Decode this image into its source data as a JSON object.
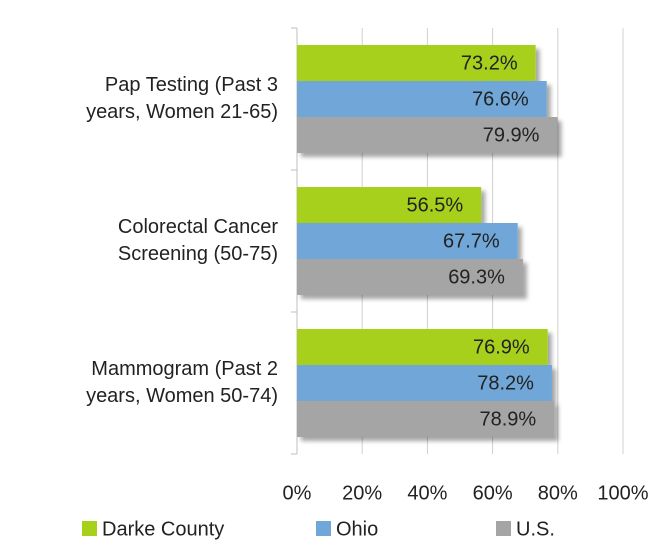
{
  "chart_data": {
    "type": "bar",
    "orientation": "horizontal",
    "categories": [
      "Pap Testing (Past 3 years, Women 21-65)",
      "Colorectal Cancer Screening (50-75)",
      "Mammogram (Past 2 years, Women 50-74)"
    ],
    "series": [
      {
        "name": "Darke County",
        "color": "#a6d01a",
        "values": [
          73.2,
          56.5,
          76.9
        ],
        "value_labels": [
          "73.2%",
          "56.5%",
          "76.9%"
        ]
      },
      {
        "name": "Ohio",
        "color": "#71a7d8",
        "values": [
          76.6,
          67.7,
          78.2
        ],
        "value_labels": [
          "76.6%",
          "67.7%",
          "78.2%"
        ]
      },
      {
        "name": "U.S.",
        "color": "#a5a5a5",
        "values": [
          79.9,
          69.3,
          78.9
        ],
        "value_labels": [
          "79.9%",
          "69.3%",
          "78.9%"
        ]
      }
    ],
    "xlim": [
      0,
      100
    ],
    "xticks": [
      {
        "value": 0,
        "label": "0%"
      },
      {
        "value": 20,
        "label": "20%"
      },
      {
        "value": 40,
        "label": "40%"
      },
      {
        "value": 60,
        "label": "60%"
      },
      {
        "value": 80,
        "label": "80%"
      },
      {
        "value": 100,
        "label": "100%"
      }
    ],
    "grid": true,
    "legend": "bottom"
  }
}
